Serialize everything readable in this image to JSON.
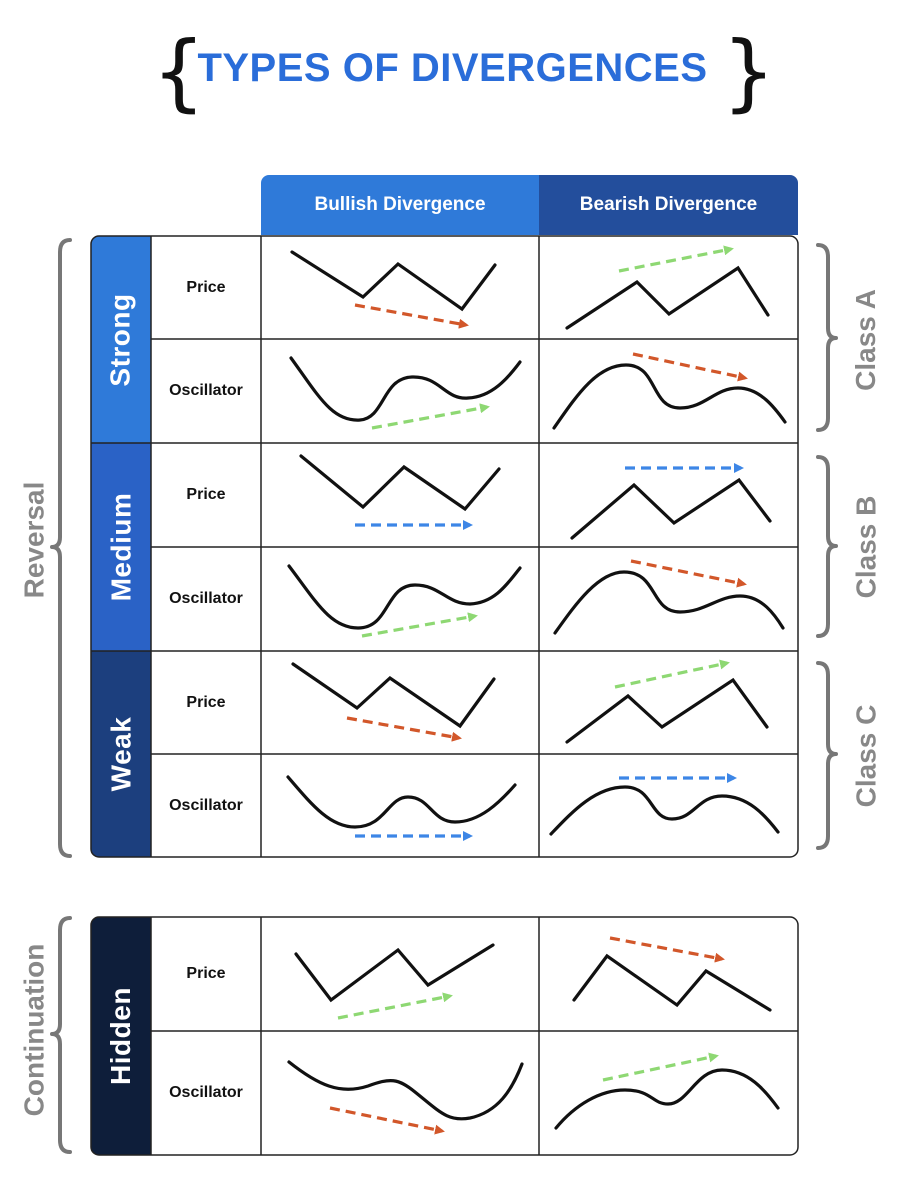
{
  "title": "TYPES OF DIVERGENCES",
  "title_braces": {
    "open": "{",
    "close": "}"
  },
  "columns": {
    "bullish": "Bullish Divergence",
    "bearish": "Bearish Divergence"
  },
  "reversal_group": {
    "label": "Reversal",
    "strengths": [
      {
        "name": "Strong",
        "class_label": "Class A",
        "rows": [
          "Price",
          "Oscillator"
        ]
      },
      {
        "name": "Medium",
        "class_label": "Class B",
        "rows": [
          "Price",
          "Oscillator"
        ]
      },
      {
        "name": "Weak",
        "class_label": "Class C",
        "rows": [
          "Price",
          "Oscillator"
        ]
      }
    ]
  },
  "continuation_group": {
    "label": "Continuation",
    "strengths": [
      {
        "name": "Hidden",
        "rows": [
          "Price",
          "Oscillator"
        ]
      }
    ]
  },
  "colors": {
    "title": "#2a6dd9",
    "bullish_header": "#2f7ad9",
    "bearish_header": "#234e9c",
    "strong": "#2f7ad9",
    "medium": "#2a62c6",
    "weak": "#1c3f7e",
    "hidden": "#0e1e3a",
    "arrow_red": "#d2572a",
    "arrow_green": "#8ed873",
    "arrow_blue": "#3d86e6",
    "side_label": "#888888"
  },
  "icons": {
    "price_curve": "zigzag-line",
    "oscillator_curve": "smooth-wave",
    "trend_arrow": "dashed-arrow"
  }
}
